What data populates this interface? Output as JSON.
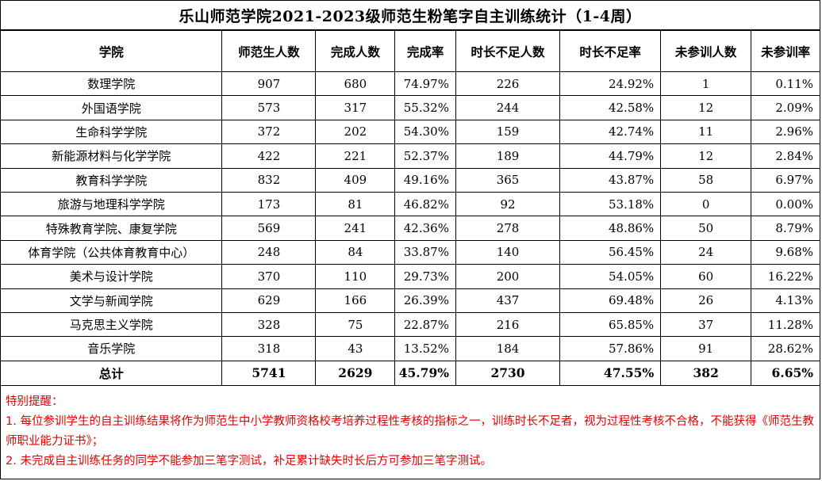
{
  "title": "乐山师范学院2021-2023级师范生粉笔字自主训练统计（1-4周）",
  "columns": [
    "学院",
    "师范生人数",
    "完成人数",
    "完成率",
    "时长不足人数",
    "时长不足率",
    "未参训人数",
    "未参训率"
  ],
  "rows": [
    {
      "college": "数理学院",
      "students": "907",
      "completed": "680",
      "completion_rate": "74.97%",
      "insufficient": "226",
      "insufficient_rate": "24.92%",
      "absent": "1",
      "absent_rate": "0.11%"
    },
    {
      "college": "外国语学院",
      "students": "573",
      "completed": "317",
      "completion_rate": "55.32%",
      "insufficient": "244",
      "insufficient_rate": "42.58%",
      "absent": "12",
      "absent_rate": "2.09%"
    },
    {
      "college": "生命科学学院",
      "students": "372",
      "completed": "202",
      "completion_rate": "54.30%",
      "insufficient": "159",
      "insufficient_rate": "42.74%",
      "absent": "11",
      "absent_rate": "2.96%"
    },
    {
      "college": "新能源材料与化学学院",
      "students": "422",
      "completed": "221",
      "completion_rate": "52.37%",
      "insufficient": "189",
      "insufficient_rate": "44.79%",
      "absent": "12",
      "absent_rate": "2.84%"
    },
    {
      "college": "教育科学学院",
      "students": "832",
      "completed": "409",
      "completion_rate": "49.16%",
      "insufficient": "365",
      "insufficient_rate": "43.87%",
      "absent": "58",
      "absent_rate": "6.97%"
    },
    {
      "college": "旅游与地理科学学院",
      "students": "173",
      "completed": "81",
      "completion_rate": "46.82%",
      "insufficient": "92",
      "insufficient_rate": "53.18%",
      "absent": "0",
      "absent_rate": "0.00%"
    },
    {
      "college": "特殊教育学院、康复学院",
      "students": "569",
      "completed": "241",
      "completion_rate": "42.36%",
      "insufficient": "278",
      "insufficient_rate": "48.86%",
      "absent": "50",
      "absent_rate": "8.79%"
    },
    {
      "college": "体育学院（公共体育教育中心）",
      "students": "248",
      "completed": "84",
      "completion_rate": "33.87%",
      "insufficient": "140",
      "insufficient_rate": "56.45%",
      "absent": "24",
      "absent_rate": "9.68%"
    },
    {
      "college": "美术与设计学院",
      "students": "370",
      "completed": "110",
      "completion_rate": "29.73%",
      "insufficient": "200",
      "insufficient_rate": "54.05%",
      "absent": "60",
      "absent_rate": "16.22%"
    },
    {
      "college": "文学与新闻学院",
      "students": "629",
      "completed": "166",
      "completion_rate": "26.39%",
      "insufficient": "437",
      "insufficient_rate": "69.48%",
      "absent": "26",
      "absent_rate": "4.13%"
    },
    {
      "college": "马克思主义学院",
      "students": "328",
      "completed": "75",
      "completion_rate": "22.87%",
      "insufficient": "216",
      "insufficient_rate": "65.85%",
      "absent": "37",
      "absent_rate": "11.28%"
    },
    {
      "college": "音乐学院",
      "students": "318",
      "completed": "43",
      "completion_rate": "13.52%",
      "insufficient": "184",
      "insufficient_rate": "57.86%",
      "absent": "91",
      "absent_rate": "28.62%"
    }
  ],
  "total": {
    "college": "总计",
    "students": "5741",
    "completed": "2629",
    "completion_rate": "45.79%",
    "insufficient": "2730",
    "insufficient_rate": "47.55%",
    "absent": "382",
    "absent_rate": "6.65%"
  },
  "notes": {
    "heading": "特别提醒：",
    "line1": "1. 每位参训学生的自主训练结果将作为师范生中小学教师资格校考培养过程性考核的指标之一，训练时长不足者，视为过程性考核不合格，不能获得《师范生教师职业能力证书》；",
    "line2": "2. 未完成自主训练任务的同学不能参加三笔字测试，补足累计缺失时长后方可参加三笔字测试。"
  },
  "colors": {
    "text": "#000000",
    "notes": "#e60000",
    "border": "#000000"
  }
}
